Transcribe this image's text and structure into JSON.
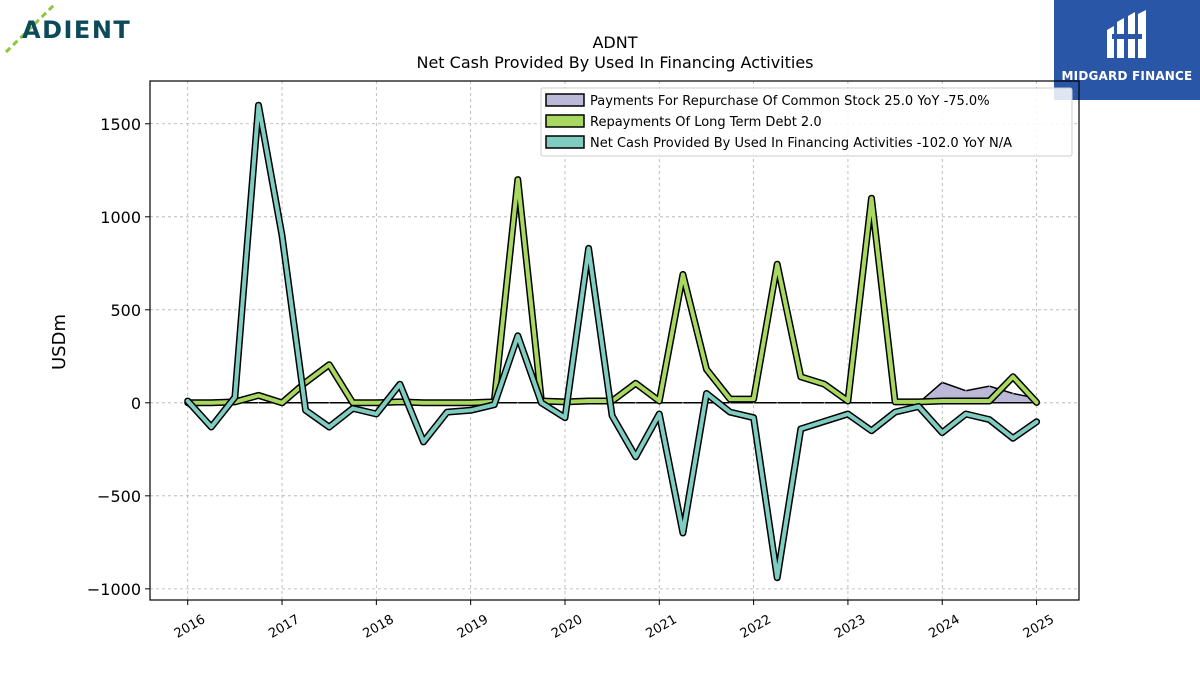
{
  "brand_left": {
    "name": "ADIENT",
    "color": "#0b4a5a",
    "accent": "#8dc63f"
  },
  "brand_right": {
    "name": "MIDGARD FINANCE",
    "bg": "#2a56a8"
  },
  "chart_data": {
    "type": "line",
    "title": "ADNT",
    "subtitle": "Net Cash Provided By Used In Financing Activities",
    "xlabel": "",
    "ylabel": "USDm",
    "xlim": [
      2015.6,
      2025.45
    ],
    "ylim": [
      -1060,
      1730
    ],
    "x_ticks": [
      "2016",
      "2017",
      "2018",
      "2019",
      "2020",
      "2021",
      "2022",
      "2023",
      "2024",
      "2025"
    ],
    "y_ticks": [
      1500,
      1000,
      500,
      0,
      -500,
      -1000
    ],
    "y_tick_labels": [
      "1500",
      "1000",
      "500",
      "0",
      "−500",
      "−1000"
    ],
    "grid": true,
    "legend_position": "top-right",
    "series": [
      {
        "name": "Payments For Repurchase Of Common Stock",
        "legend_label": "Payments For Repurchase Of Common Stock  25.0 YoY -75.0%",
        "color": "#bcb8d8",
        "style": "area",
        "x": [
          2016.0,
          2016.25,
          2016.5,
          2016.75,
          2017.0,
          2017.25,
          2017.5,
          2017.75,
          2018.0,
          2018.25,
          2018.5,
          2018.75,
          2019.0,
          2019.25,
          2019.5,
          2019.75,
          2020.0,
          2020.25,
          2020.5,
          2020.75,
          2021.0,
          2021.25,
          2021.5,
          2021.75,
          2022.0,
          2022.25,
          2022.5,
          2022.75,
          2023.0,
          2023.25,
          2023.5,
          2023.75,
          2024.0,
          2024.25,
          2024.5,
          2024.75,
          2025.0
        ],
        "y": [
          0,
          0,
          0,
          0,
          0,
          0,
          0,
          0,
          0,
          0,
          0,
          0,
          0,
          0,
          0,
          0,
          0,
          0,
          0,
          0,
          0,
          0,
          0,
          0,
          0,
          0,
          0,
          0,
          0,
          0,
          0,
          0,
          110,
          65,
          90,
          50,
          25
        ]
      },
      {
        "name": "Repayments Of Long Term Debt",
        "legend_label": "Repayments Of Long Term Debt  2.0",
        "color": "#a8d860",
        "style": "line",
        "x": [
          2016.0,
          2016.25,
          2016.5,
          2016.75,
          2017.0,
          2017.25,
          2017.5,
          2017.75,
          2018.0,
          2018.25,
          2018.5,
          2018.75,
          2019.0,
          2019.25,
          2019.5,
          2019.75,
          2020.0,
          2020.25,
          2020.5,
          2020.75,
          2021.0,
          2021.25,
          2021.5,
          2021.75,
          2022.0,
          2022.25,
          2022.5,
          2022.75,
          2023.0,
          2023.25,
          2023.5,
          2023.75,
          2024.0,
          2024.25,
          2024.5,
          2024.75,
          2025.0
        ],
        "y": [
          0,
          0,
          5,
          40,
          0,
          110,
          205,
          0,
          0,
          5,
          0,
          0,
          0,
          5,
          1200,
          10,
          5,
          10,
          10,
          105,
          10,
          690,
          180,
          20,
          20,
          745,
          140,
          100,
          10,
          1100,
          5,
          5,
          10,
          10,
          10,
          140,
          2
        ]
      },
      {
        "name": "Net Cash Provided By Used In Financing Activities",
        "legend_label": "Net Cash Provided By Used In Financing Activities  -102.0 YoY N/A",
        "color": "#7fccc0",
        "style": "line",
        "x": [
          2016.0,
          2016.25,
          2016.5,
          2016.75,
          2017.0,
          2017.25,
          2017.5,
          2017.75,
          2018.0,
          2018.25,
          2018.5,
          2018.75,
          2019.0,
          2019.25,
          2019.5,
          2019.75,
          2020.0,
          2020.25,
          2020.5,
          2020.75,
          2021.0,
          2021.25,
          2021.5,
          2021.75,
          2022.0,
          2022.25,
          2022.5,
          2022.75,
          2023.0,
          2023.25,
          2023.5,
          2023.75,
          2024.0,
          2024.25,
          2024.5,
          2024.75,
          2025.0
        ],
        "y": [
          10,
          -130,
          30,
          1600,
          900,
          -40,
          -130,
          -30,
          -60,
          100,
          -210,
          -50,
          -40,
          -10,
          360,
          0,
          -80,
          830,
          -70,
          -290,
          -60,
          -700,
          50,
          -50,
          -80,
          -940,
          -140,
          -100,
          -60,
          -150,
          -50,
          -20,
          -160,
          -60,
          -90,
          -190,
          -102
        ]
      }
    ]
  }
}
